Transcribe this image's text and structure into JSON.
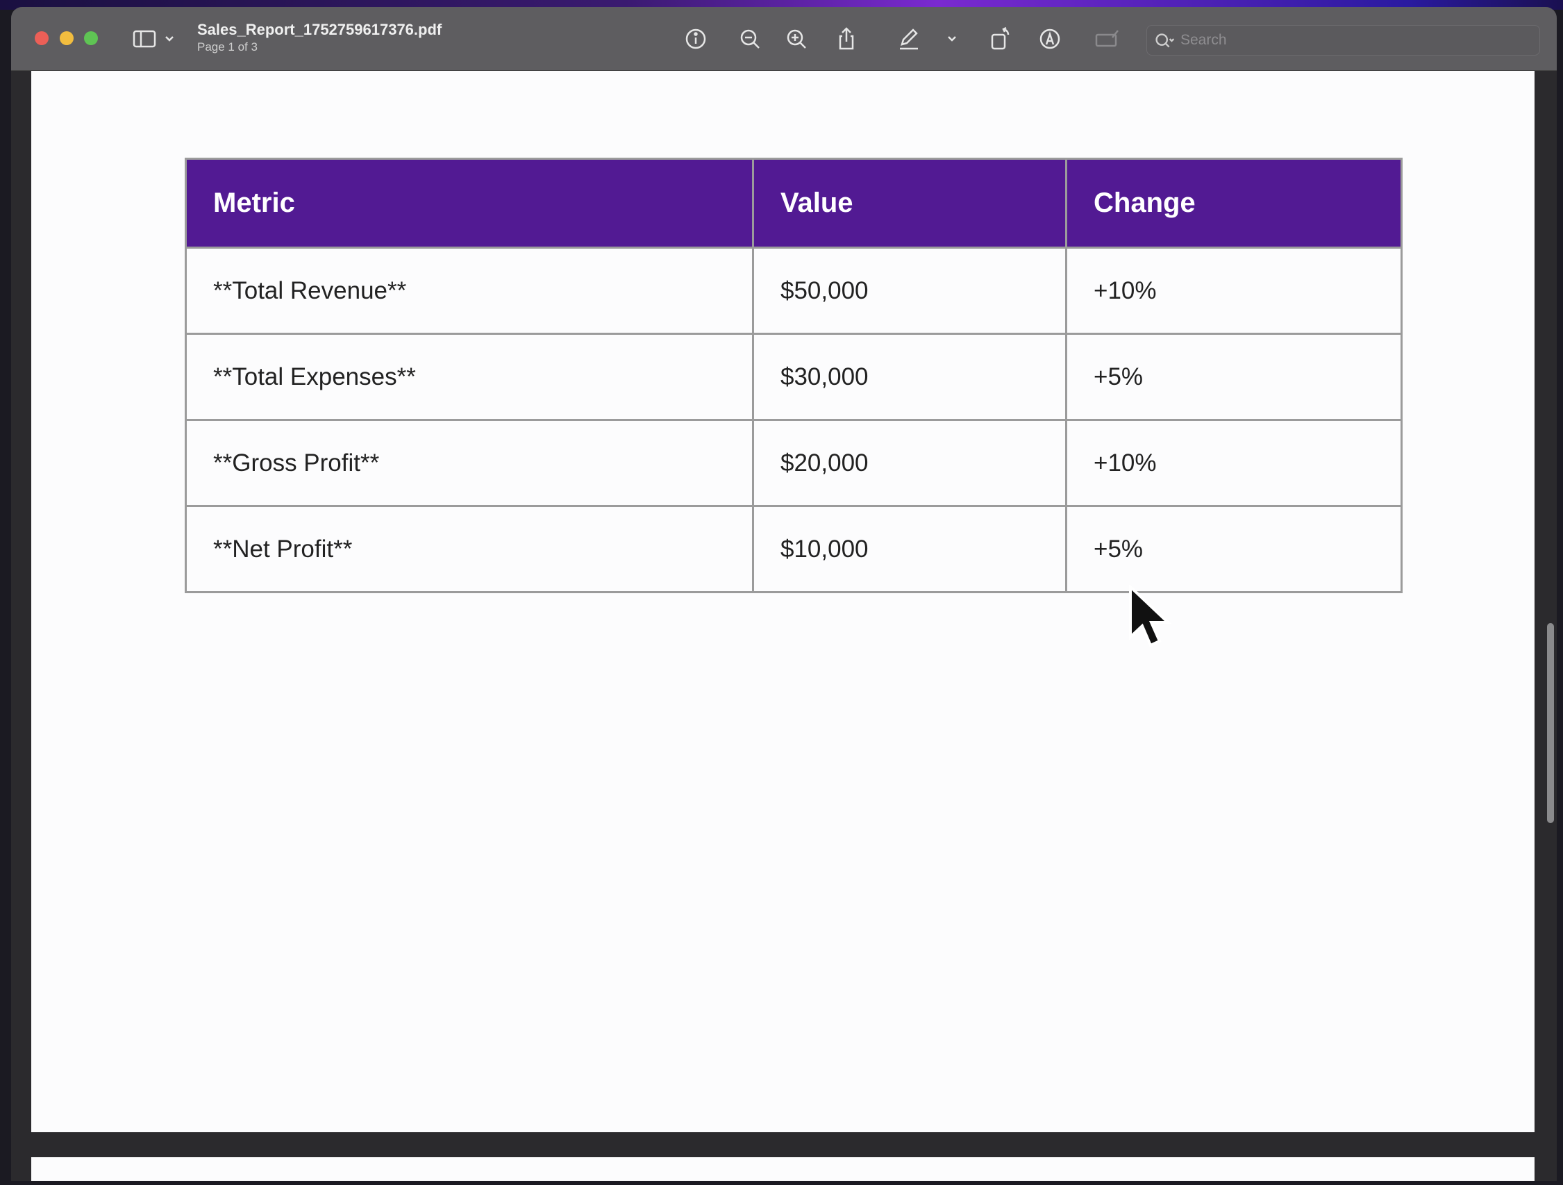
{
  "window": {
    "title": "Sales_Report_1752759617376.pdf",
    "subtitle": "Page 1 of 3"
  },
  "toolbar": {
    "search_placeholder": "Search",
    "icons": [
      "sidebar-icon",
      "chevron-down-icon",
      "info-icon",
      "zoom-out-icon",
      "zoom-in-icon",
      "share-icon",
      "pen-icon",
      "chevron-down-icon",
      "rotate-icon",
      "markup-icon",
      "signature-icon",
      "search-icon"
    ]
  },
  "colors": {
    "header": "#521a93",
    "toolbar": "#5e5d60",
    "border": "#9b9b9b"
  },
  "table": {
    "headers": [
      "Metric",
      "Value",
      "Change"
    ],
    "rows": [
      [
        "**Total Revenue**",
        "$50,000",
        "+10%"
      ],
      [
        "**Total Expenses**",
        "$30,000",
        "+5%"
      ],
      [
        "**Gross Profit**",
        "$20,000",
        "+10%"
      ],
      [
        "**Net Profit**",
        "$10,000",
        "+5%"
      ]
    ]
  }
}
